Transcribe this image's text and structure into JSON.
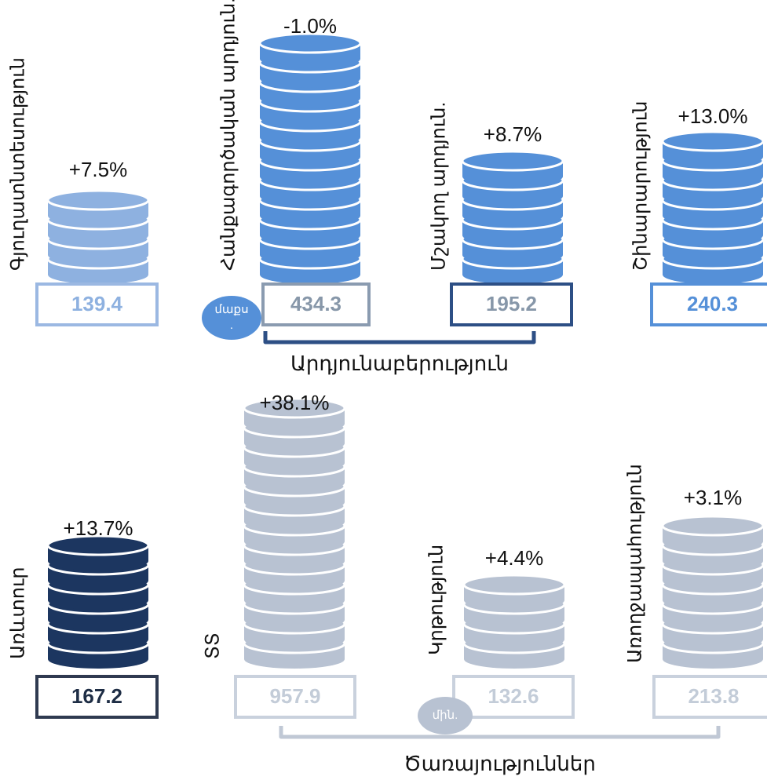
{
  "items": [
    {
      "label": "Գյուղատնտեսություն",
      "change": "+7.5%",
      "value": "139.4"
    },
    {
      "label": "Հանքագործական արդյուն.",
      "change": "-1.0%",
      "value": "434.3",
      "badge": [
        "մաքս",
        "."
      ]
    },
    {
      "label": "Մշակող արդյուն.",
      "change": "+8.7%",
      "value": "195.2"
    },
    {
      "label": "Շինարարություն",
      "change": "+13.0%",
      "value": "240.3"
    },
    {
      "label": "Առևտուր",
      "change": "+13.7%",
      "value": "167.2"
    },
    {
      "label": "ՏՏ",
      "change": "+38.1%",
      "value": "957.9"
    },
    {
      "label": "Կրթություն",
      "change": "+4.4%",
      "value": "132.6",
      "badge": [
        "մին."
      ]
    },
    {
      "label": "Առողջապահություն",
      "change": "+3.1%",
      "value": "213.8"
    }
  ],
  "groups": [
    {
      "label": "Արդյունաբերություն"
    },
    {
      "label": "Ծառայություններ"
    }
  ]
}
